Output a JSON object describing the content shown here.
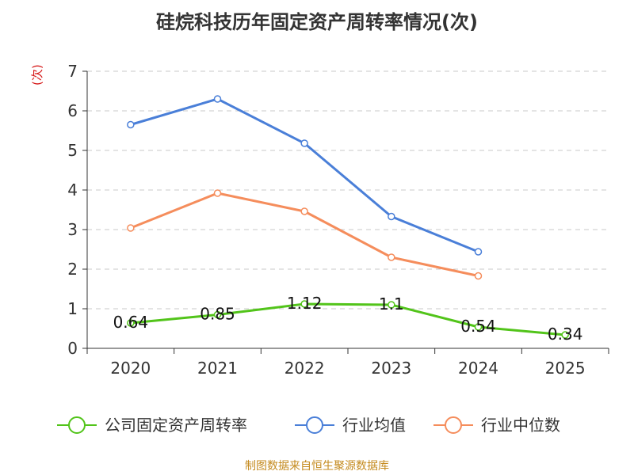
{
  "title": "硅烷科技历年固定资产周转率情况(次)",
  "source": "制图数据来自恒生聚源数据库",
  "chart_data": {
    "type": "line",
    "title": "硅烷科技历年固定资产周转率情况(次)",
    "ylabel": "(次)",
    "xlabel": "",
    "categories": [
      "2020",
      "2021",
      "2022",
      "2023",
      "2024",
      "2025"
    ],
    "ylim": [
      0,
      7
    ],
    "yticks": [
      0,
      1,
      2,
      3,
      4,
      5,
      6,
      7
    ],
    "grid": true,
    "legend_position": "bottom",
    "series": [
      {
        "name": "公司固定资产周转率",
        "color": "#52c41a",
        "values": [
          0.64,
          0.85,
          1.12,
          1.1,
          0.54,
          0.34
        ],
        "labels": [
          "0.64",
          "0.85",
          "1.12",
          "1.1",
          "0.54",
          "0.34"
        ]
      },
      {
        "name": "行业均值",
        "color": "#4a7fd8",
        "values": [
          5.65,
          6.3,
          5.18,
          3.33,
          2.44,
          null
        ]
      },
      {
        "name": "行业中位数",
        "color": "#f58d5c",
        "values": [
          3.04,
          3.92,
          3.46,
          2.3,
          1.83,
          null
        ]
      }
    ]
  }
}
